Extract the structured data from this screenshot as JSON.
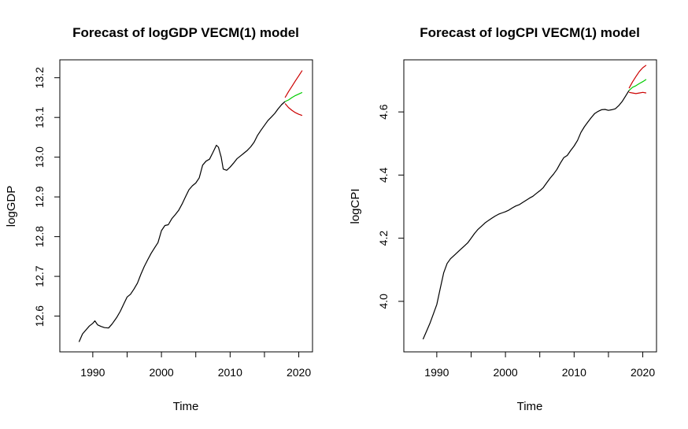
{
  "chart_data": [
    {
      "type": "line",
      "title": "Forecast of logGDP VECM(1) model",
      "xlabel": "Time",
      "ylabel": "logGDP",
      "xlim": [
        1985.2,
        2022.0
      ],
      "ylim": [
        12.51,
        13.245
      ],
      "x_ticks": [
        1990,
        1995,
        2000,
        2005,
        2010,
        2015,
        2020
      ],
      "x_tick_labels": [
        "1990",
        "",
        "2000",
        "",
        "2010",
        "",
        "2020"
      ],
      "y_ticks": [
        12.6,
        12.7,
        12.8,
        12.9,
        13.0,
        13.1,
        13.2
      ],
      "y_tick_labels": [
        "12.6",
        "12.7",
        "12.8",
        "12.9",
        "13.0",
        "13.1",
        "13.2"
      ],
      "grid": false,
      "series": [
        {
          "color": "#000000",
          "points": [
            [
              1988.0,
              12.535
            ],
            [
              1988.5,
              12.555
            ],
            [
              1989.0,
              12.565
            ],
            [
              1989.5,
              12.575
            ],
            [
              1990.0,
              12.582
            ],
            [
              1990.3,
              12.588
            ],
            [
              1990.7,
              12.578
            ],
            [
              1991.2,
              12.574
            ],
            [
              1991.7,
              12.571
            ],
            [
              1992.3,
              12.57
            ],
            [
              1992.8,
              12.58
            ],
            [
              1993.5,
              12.597
            ],
            [
              1994.0,
              12.612
            ],
            [
              1994.5,
              12.63
            ],
            [
              1995.0,
              12.648
            ],
            [
              1995.5,
              12.655
            ],
            [
              1996.0,
              12.668
            ],
            [
              1996.5,
              12.683
            ],
            [
              1997.0,
              12.705
            ],
            [
              1997.5,
              12.725
            ],
            [
              1998.0,
              12.742
            ],
            [
              1998.5,
              12.758
            ],
            [
              1999.0,
              12.772
            ],
            [
              1999.5,
              12.785
            ],
            [
              2000.0,
              12.815
            ],
            [
              2000.5,
              12.828
            ],
            [
              2001.0,
              12.83
            ],
            [
              2001.5,
              12.845
            ],
            [
              2002.0,
              12.855
            ],
            [
              2002.5,
              12.866
            ],
            [
              2003.0,
              12.882
            ],
            [
              2003.5,
              12.9
            ],
            [
              2004.0,
              12.918
            ],
            [
              2004.5,
              12.928
            ],
            [
              2005.0,
              12.935
            ],
            [
              2005.5,
              12.948
            ],
            [
              2006.0,
              12.98
            ],
            [
              2006.5,
              12.99
            ],
            [
              2007.0,
              12.995
            ],
            [
              2007.5,
              13.012
            ],
            [
              2008.0,
              13.03
            ],
            [
              2008.3,
              13.025
            ],
            [
              2008.7,
              13.0
            ],
            [
              2009.0,
              12.97
            ],
            [
              2009.5,
              12.967
            ],
            [
              2010.0,
              12.975
            ],
            [
              2010.5,
              12.985
            ],
            [
              2011.0,
              12.996
            ],
            [
              2011.5,
              13.003
            ],
            [
              2012.0,
              13.01
            ],
            [
              2012.5,
              13.017
            ],
            [
              2013.0,
              13.026
            ],
            [
              2013.5,
              13.038
            ],
            [
              2014.0,
              13.055
            ],
            [
              2014.5,
              13.068
            ],
            [
              2015.0,
              13.08
            ],
            [
              2015.5,
              13.092
            ],
            [
              2016.0,
              13.101
            ],
            [
              2016.5,
              13.11
            ],
            [
              2017.0,
              13.122
            ],
            [
              2017.5,
              13.132
            ],
            [
              2018.0,
              13.14
            ]
          ]
        },
        {
          "color": "#00cc00",
          "points": [
            [
              2018.0,
              13.14
            ],
            [
              2018.5,
              13.144
            ],
            [
              2019.0,
              13.15
            ],
            [
              2019.5,
              13.155
            ],
            [
              2020.0,
              13.159
            ],
            [
              2020.5,
              13.163
            ]
          ]
        },
        {
          "color": "#cc0000",
          "points": [
            [
              2018.0,
              13.15
            ],
            [
              2018.5,
              13.165
            ],
            [
              2019.0,
              13.178
            ],
            [
              2019.5,
              13.192
            ],
            [
              2020.0,
              13.205
            ],
            [
              2020.5,
              13.218
            ]
          ]
        },
        {
          "color": "#cc0000",
          "points": [
            [
              2018.0,
              13.135
            ],
            [
              2018.5,
              13.125
            ],
            [
              2019.0,
              13.118
            ],
            [
              2019.5,
              13.112
            ],
            [
              2020.0,
              13.108
            ],
            [
              2020.5,
              13.105
            ]
          ]
        }
      ]
    },
    {
      "type": "line",
      "title": "Forecast of logCPI VECM(1) model",
      "xlabel": "Time",
      "ylabel": "logCPI",
      "xlim": [
        1985.2,
        2022.0
      ],
      "ylim": [
        3.84,
        4.765
      ],
      "x_ticks": [
        1990,
        1995,
        2000,
        2005,
        2010,
        2015,
        2020
      ],
      "x_tick_labels": [
        "1990",
        "",
        "2000",
        "",
        "2010",
        "",
        "2020"
      ],
      "y_ticks": [
        4.0,
        4.2,
        4.4,
        4.6
      ],
      "y_tick_labels": [
        "4.0",
        "4.2",
        "4.4",
        "4.6"
      ],
      "grid": false,
      "series": [
        {
          "color": "#000000",
          "points": [
            [
              1988.0,
              3.88
            ],
            [
              1988.5,
              3.905
            ],
            [
              1989.0,
              3.93
            ],
            [
              1989.5,
              3.96
            ],
            [
              1990.0,
              3.99
            ],
            [
              1990.5,
              4.04
            ],
            [
              1991.0,
              4.09
            ],
            [
              1991.5,
              4.12
            ],
            [
              1992.0,
              4.135
            ],
            [
              1992.5,
              4.145
            ],
            [
              1993.0,
              4.155
            ],
            [
              1993.5,
              4.165
            ],
            [
              1994.0,
              4.175
            ],
            [
              1994.5,
              4.185
            ],
            [
              1995.0,
              4.2
            ],
            [
              1995.5,
              4.215
            ],
            [
              1996.0,
              4.228
            ],
            [
              1996.5,
              4.238
            ],
            [
              1997.0,
              4.248
            ],
            [
              1997.5,
              4.256
            ],
            [
              1998.0,
              4.263
            ],
            [
              1998.5,
              4.27
            ],
            [
              1999.0,
              4.276
            ],
            [
              1999.5,
              4.28
            ],
            [
              2000.0,
              4.284
            ],
            [
              2000.5,
              4.289
            ],
            [
              2001.0,
              4.296
            ],
            [
              2001.5,
              4.302
            ],
            [
              2002.0,
              4.306
            ],
            [
              2002.5,
              4.313
            ],
            [
              2003.0,
              4.32
            ],
            [
              2003.5,
              4.327
            ],
            [
              2004.0,
              4.333
            ],
            [
              2004.5,
              4.342
            ],
            [
              2005.0,
              4.35
            ],
            [
              2005.5,
              4.36
            ],
            [
              2006.0,
              4.375
            ],
            [
              2006.5,
              4.39
            ],
            [
              2007.0,
              4.403
            ],
            [
              2007.5,
              4.418
            ],
            [
              2008.0,
              4.438
            ],
            [
              2008.5,
              4.455
            ],
            [
              2009.0,
              4.462
            ],
            [
              2009.5,
              4.478
            ],
            [
              2010.0,
              4.492
            ],
            [
              2010.5,
              4.51
            ],
            [
              2011.0,
              4.535
            ],
            [
              2011.5,
              4.553
            ],
            [
              2012.0,
              4.568
            ],
            [
              2012.5,
              4.582
            ],
            [
              2013.0,
              4.595
            ],
            [
              2013.5,
              4.602
            ],
            [
              2014.0,
              4.607
            ],
            [
              2014.5,
              4.608
            ],
            [
              2015.0,
              4.605
            ],
            [
              2015.5,
              4.607
            ],
            [
              2016.0,
              4.61
            ],
            [
              2016.5,
              4.62
            ],
            [
              2017.0,
              4.633
            ],
            [
              2017.5,
              4.65
            ],
            [
              2018.0,
              4.668
            ]
          ]
        },
        {
          "color": "#00cc00",
          "points": [
            [
              2018.0,
              4.668
            ],
            [
              2018.5,
              4.678
            ],
            [
              2019.0,
              4.683
            ],
            [
              2019.5,
              4.69
            ],
            [
              2020.0,
              4.696
            ],
            [
              2020.5,
              4.703
            ]
          ]
        },
        {
          "color": "#cc0000",
          "points": [
            [
              2018.0,
              4.675
            ],
            [
              2018.5,
              4.695
            ],
            [
              2019.0,
              4.712
            ],
            [
              2019.5,
              4.728
            ],
            [
              2020.0,
              4.74
            ],
            [
              2020.5,
              4.748
            ]
          ]
        },
        {
          "color": "#cc0000",
          "points": [
            [
              2018.0,
              4.662
            ],
            [
              2018.5,
              4.66
            ],
            [
              2019.0,
              4.658
            ],
            [
              2019.5,
              4.66
            ],
            [
              2020.0,
              4.662
            ],
            [
              2020.5,
              4.66
            ]
          ]
        }
      ]
    }
  ]
}
